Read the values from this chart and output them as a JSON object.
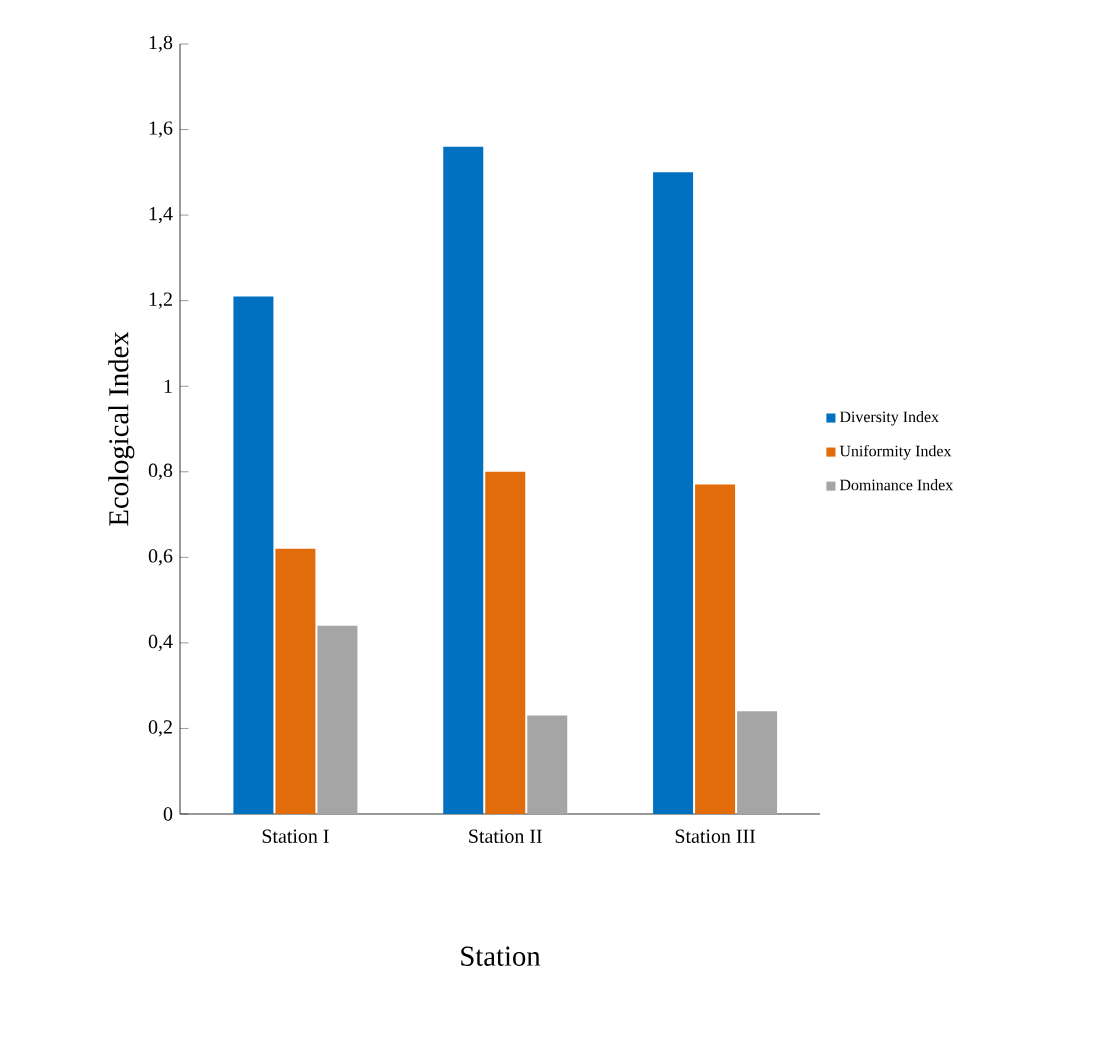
{
  "chart_data": {
    "type": "bar",
    "xlabel": "Station",
    "ylabel": "Ecological Index",
    "categories": [
      "Station I",
      "Station II",
      "Station III"
    ],
    "series": [
      {
        "name": "Diversity Index",
        "color": "#0070c0",
        "values": [
          1.21,
          1.56,
          1.5
        ]
      },
      {
        "name": "Uniformity Index",
        "color": "#e36c0a",
        "values": [
          0.62,
          0.8,
          0.77
        ]
      },
      {
        "name": "Dominance Index",
        "color": "#a5a5a5",
        "values": [
          0.44,
          0.23,
          0.24
        ]
      }
    ],
    "ylim": [
      0,
      1.8
    ],
    "yticks": [
      {
        "value": 0,
        "label": "0"
      },
      {
        "value": 0.2,
        "label": "0,2"
      },
      {
        "value": 0.4,
        "label": "0,4"
      },
      {
        "value": 0.6,
        "label": "0,6"
      },
      {
        "value": 0.8,
        "label": "0,8"
      },
      {
        "value": 1,
        "label": "1"
      },
      {
        "value": 1.2,
        "label": "1,2"
      },
      {
        "value": 1.4,
        "label": "1,4"
      },
      {
        "value": 1.6,
        "label": "1,6"
      },
      {
        "value": 1.8,
        "label": "1,8"
      }
    ],
    "legend": "right"
  }
}
